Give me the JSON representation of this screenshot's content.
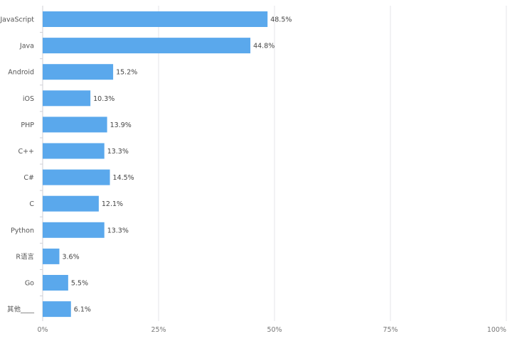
{
  "chart_data": {
    "type": "bar",
    "orientation": "horizontal",
    "categories": [
      "JavaScript",
      "Java",
      "Android",
      "iOS",
      "PHP",
      "C++",
      "C#",
      "C",
      "Python",
      "R语言",
      "Go",
      "其他____"
    ],
    "values": [
      48.5,
      44.8,
      15.2,
      10.3,
      13.9,
      13.3,
      14.5,
      12.1,
      13.3,
      3.6,
      5.5,
      6.1
    ],
    "value_labels": [
      "48.5%",
      "44.8%",
      "15.2%",
      "10.3%",
      "13.9%",
      "13.3%",
      "14.5%",
      "12.1%",
      "13.3%",
      "3.6%",
      "5.5%",
      "6.1%"
    ],
    "xlim": [
      0,
      100
    ],
    "x_ticks": [
      0,
      25,
      50,
      75,
      100
    ],
    "x_tick_labels": [
      "0%",
      "25%",
      "50%",
      "75%",
      "100%"
    ],
    "grid": "vertical",
    "legend": "none",
    "title": "",
    "xlabel": "",
    "ylabel": "",
    "colors": {
      "bar": "#5aa8ec",
      "grid": "#e4e4ea",
      "axis": "#cfcfd6",
      "category_text": "#555555",
      "value_text": "#444444",
      "tick_text": "#777777"
    }
  }
}
